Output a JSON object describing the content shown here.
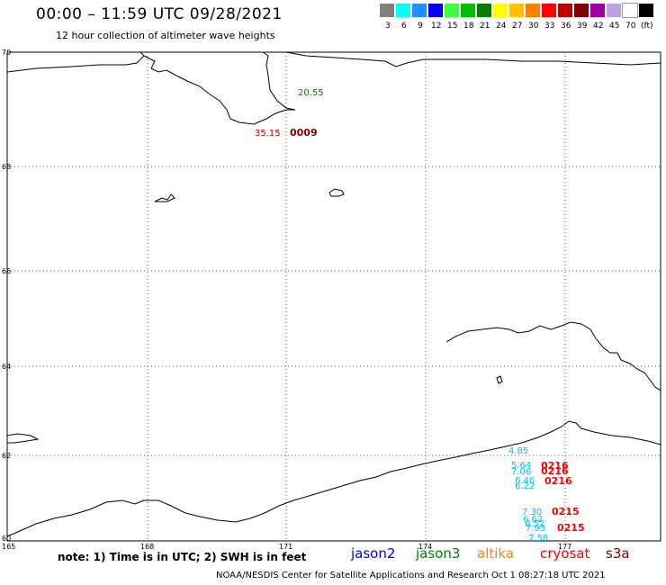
{
  "header": {
    "title": "00:00 – 11:59 UTC 09/28/2021",
    "subtitle": "12 hour collection of altimeter wave heights"
  },
  "legend": {
    "colors": [
      "#808080",
      "#00ffff",
      "#1e90ff",
      "#0000ff",
      "#40ff40",
      "#00c000",
      "#008000",
      "#ffff00",
      "#ffc000",
      "#ff8000",
      "#ff0000",
      "#c00000",
      "#800000",
      "#a000a0",
      "#c0a0e0",
      "#ffffff",
      "#000000"
    ],
    "labels": [
      "3",
      "6",
      "9",
      "12",
      "15",
      "18",
      "21",
      "24",
      "27",
      "30",
      "33",
      "36",
      "39",
      "42",
      "45",
      "70",
      "(ft)"
    ]
  },
  "axes": {
    "lat_labels": [
      "70",
      "68",
      "66",
      "64",
      "62",
      "60"
    ],
    "lon_labels": [
      "165",
      "168",
      "171",
      "174",
      "177"
    ]
  },
  "observations": [
    {
      "value": "20.55",
      "color": "#008000"
    },
    {
      "value": "35.15",
      "color": "#c00000"
    },
    {
      "value": "4.85",
      "color": "#00bfff"
    },
    {
      "value": "5.64",
      "color": "#00bfff"
    },
    {
      "value": "7.06",
      "color": "#00bfff"
    },
    {
      "value": "6.46",
      "color": "#00bfff"
    },
    {
      "value": "6.22",
      "color": "#00bfff"
    },
    {
      "value": "7.30",
      "color": "#00bfff"
    },
    {
      "value": "6.62",
      "color": "#00bfff"
    },
    {
      "value": "6.52",
      "color": "#00bfff"
    },
    {
      "value": "7.93",
      "color": "#00bfff"
    },
    {
      "value": "7.58",
      "color": "#00bfff"
    }
  ],
  "timestamps": [
    {
      "value": "0009",
      "color": "#800000"
    },
    {
      "value": "0216",
      "color": "#ff0000"
    },
    {
      "value": "0216",
      "color": "#ff0000"
    },
    {
      "value": "0216",
      "color": "#ff0000"
    },
    {
      "value": "0215",
      "color": "#ff0000"
    },
    {
      "value": "0215",
      "color": "#ff0000"
    }
  ],
  "footer": {
    "note": "note: 1) Time is in UTC; 2) SWH is in feet",
    "satellites": [
      {
        "name": "jason2",
        "color": "#0000ff"
      },
      {
        "name": "jason3",
        "color": "#008000"
      },
      {
        "name": "altika",
        "color": "#ff8000"
      },
      {
        "name": "cryosat",
        "color": "#ff0000"
      },
      {
        "name": "s3a",
        "color": "#800000"
      }
    ],
    "credit": "NOAA/NESDIS Center for Satellite Applications and Research    Oct  1 08:27:18 UTC 2021"
  }
}
